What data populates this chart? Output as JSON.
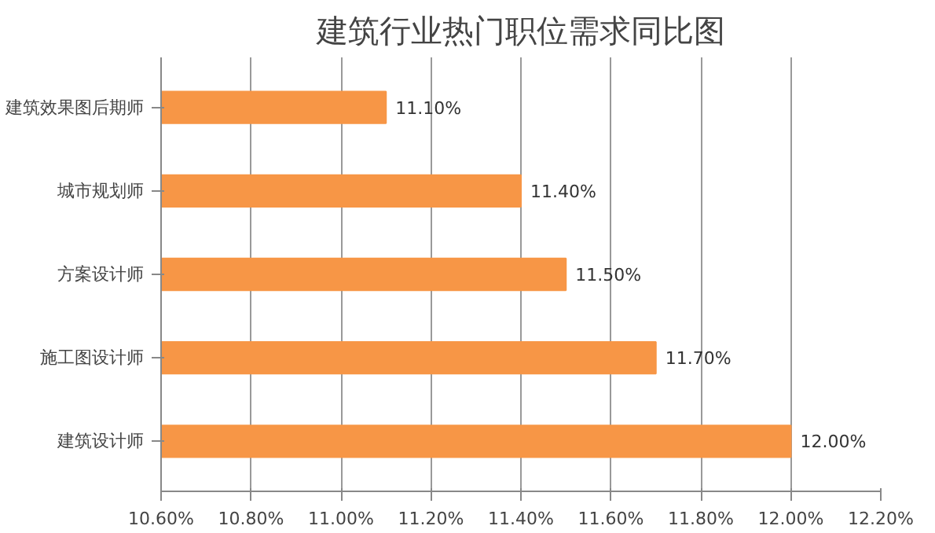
{
  "chart_data": {
    "type": "bar",
    "orientation": "horizontal",
    "title": "建筑行业热门职位需求同比图",
    "categories": [
      "建筑效果图后期师",
      "城市规划师",
      "方案设计师",
      "施工图设计师",
      "建筑设计师"
    ],
    "values": [
      11.1,
      11.4,
      11.5,
      11.7,
      12.0
    ],
    "value_labels": [
      "11.10%",
      "11.40%",
      "11.50%",
      "11.70%",
      "12.00%"
    ],
    "color": "#f79646",
    "xlim": [
      10.6,
      12.2
    ],
    "xticks": [
      {
        "value": 10.6,
        "label": "10.60%"
      },
      {
        "value": 10.8,
        "label": "10.80%"
      },
      {
        "value": 11.0,
        "label": "11.00%"
      },
      {
        "value": 11.2,
        "label": "11.20%"
      },
      {
        "value": 11.4,
        "label": "11.40%"
      },
      {
        "value": 11.6,
        "label": "11.60%"
      },
      {
        "value": 11.8,
        "label": "11.80%"
      },
      {
        "value": 12.0,
        "label": "12.00%"
      },
      {
        "value": 12.2,
        "label": "12.20%"
      }
    ],
    "grid": "x"
  }
}
